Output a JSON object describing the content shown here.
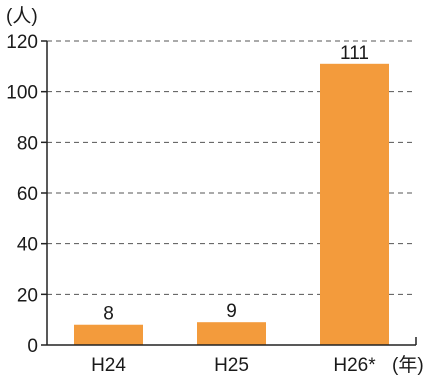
{
  "chart_data": {
    "type": "bar",
    "categories": [
      "H24",
      "H25",
      "H26*"
    ],
    "values": [
      8,
      9,
      111
    ],
    "data_labels": [
      "8",
      "9",
      "111"
    ],
    "y_unit": "(人)",
    "x_unit": "(年)",
    "ylim": [
      0,
      120
    ],
    "yticks": [
      0,
      20,
      40,
      60,
      80,
      100,
      120
    ],
    "grid": true,
    "grid_style": "dashed",
    "legend": "none",
    "colors": {
      "bar": "#F39B3C",
      "axis": "#222222",
      "grid": "#555555"
    }
  }
}
